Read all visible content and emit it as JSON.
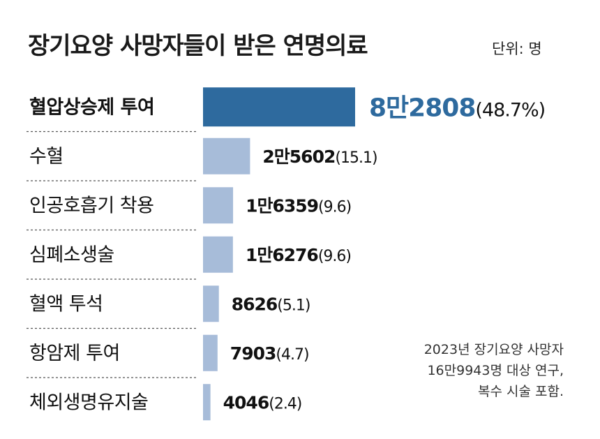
{
  "header": {
    "title": "장기요양 사망자들이 받은 연명의료",
    "unit": "단위: 명"
  },
  "note": {
    "lines": [
      "2023년 장기요양 사망자",
      "16만9943명 대상 연구,",
      "복수 시술 포함."
    ]
  },
  "colors": {
    "highlight": "#2e6a9e",
    "bar": "#a7bcd9",
    "label": "#111111",
    "divider": "#555555"
  },
  "chart_data": {
    "type": "bar",
    "orientation": "horizontal",
    "categories": [
      "혈압상승제 투여",
      "수혈",
      "인공호흡기 착용",
      "심폐소생술",
      "혈액 투석",
      "항암제 투여",
      "체외생명유지술"
    ],
    "values": [
      82808,
      25602,
      16359,
      16276,
      8626,
      7903,
      4046
    ],
    "value_labels": [
      "8만2808",
      "2만5602",
      "1만6359",
      "1만6276",
      "8626",
      "7903",
      "4046"
    ],
    "percent_labels": [
      "(48.7%)",
      "(15.1)",
      "(9.6)",
      "(9.6)",
      "(5.1)",
      "(4.7)",
      "(2.4)"
    ],
    "percents": [
      48.7,
      15.1,
      9.6,
      9.6,
      5.1,
      4.7,
      2.4
    ],
    "highlight_index": 0,
    "grid": false,
    "legend": "none"
  }
}
